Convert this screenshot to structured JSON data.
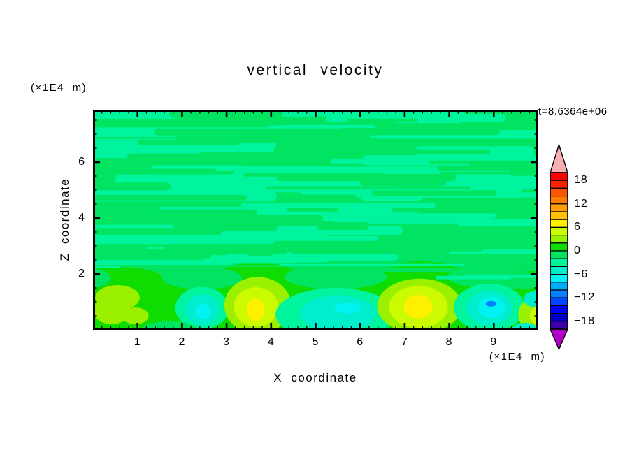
{
  "title": "vertical velocity",
  "timestamp": "t=8.6364e+06",
  "x_axis": {
    "label": "X coordinate",
    "unit": "(×1E4 m)",
    "range": [
      0,
      10
    ],
    "major_ticks": [
      1,
      2,
      3,
      4,
      5,
      6,
      7,
      8,
      9
    ],
    "tick_labels": [
      "1",
      "2",
      "3",
      "4",
      "5",
      "6",
      "7",
      "8",
      "9"
    ],
    "minor_tick_step": 0.2
  },
  "z_axis": {
    "label": "Z coordinate",
    "unit": "(×1E4 m)",
    "range": [
      0,
      7.875
    ],
    "major_ticks": [
      2,
      4,
      6
    ],
    "tick_labels": [
      "2",
      "4",
      "6"
    ],
    "minor_tick_step": 0.5
  },
  "colorbar": {
    "max": 20,
    "min": -20,
    "interval": 2,
    "ticks": [
      {
        "label": "18",
        "value": 18
      },
      {
        "label": "12",
        "value": 12
      },
      {
        "label": "6",
        "value": 6
      },
      {
        "label": "0",
        "value": 0
      },
      {
        "label": "−6",
        "value": -6
      },
      {
        "label": "−12",
        "value": -12
      },
      {
        "label": "−18",
        "value": -18
      }
    ],
    "colors_top_to_bottom": [
      "#FF0000",
      "#FF2200",
      "#FF5500",
      "#FF7D00",
      "#FF9E00",
      "#FFC100",
      "#FFF000",
      "#CCFA00",
      "#9BF000",
      "#0FDC00",
      "#00E462",
      "#00F49D",
      "#00EECB",
      "#00F2F2",
      "#00AEF6",
      "#0080FF",
      "#0045FF",
      "#0000FF",
      "#0000C8",
      "#3C00A8"
    ],
    "over_arrow_color": "#F8AFB2",
    "under_arrow_color": "#B400C8"
  },
  "chart_data": {
    "type": "filled_contour",
    "field_name": "vertical velocity",
    "time_label": "t=8.6364e+06",
    "x_range_x1E4_m": [
      0,
      10
    ],
    "z_range_x1E4_m": [
      0,
      7.875
    ],
    "contour_interval": 2,
    "value_range": [
      -20,
      20
    ],
    "wave_region": {
      "z_above": 1.75,
      "background_color": "#00E462",
      "streak_color": "#00F49D",
      "description": "stratified region filled with thin horizontal gravity-wave streaks alternating between the 0..-2 and -2..-4 bands",
      "seed": 1337,
      "light_streaks": 64,
      "dark_streaks": 42,
      "filaments": 9
    },
    "convective_layer": {
      "z_below": 1.75,
      "background_color": "#0FDC00",
      "background_band": "0..+2",
      "bumps": [
        {
          "x": 0.55,
          "z": 1.8,
          "rx": 1.05,
          "rz": 0.45
        },
        {
          "x": 3.7,
          "z": 1.85,
          "rx": 0.95,
          "rz": 0.55
        },
        {
          "x": 4.74,
          "z": 1.7,
          "rx": 0.45,
          "rz": 0.3
        },
        {
          "x": 5.26,
          "z": 1.62,
          "rx": 0.45,
          "rz": 0.38
        },
        {
          "x": 7.33,
          "z": 1.85,
          "rx": 1.05,
          "rz": 0.6
        },
        {
          "x": 9.9,
          "z": 1.7,
          "rx": 0.7,
          "rz": 0.4
        }
      ],
      "bites": [
        {
          "x": -0.05,
          "z": 1.85,
          "rx": 0.45,
          "rz": 0.35
        },
        {
          "x": 2.45,
          "z": 1.85,
          "rx": 0.9,
          "rz": 0.4
        },
        {
          "x": 5.45,
          "z": 1.9,
          "rx": 1.15,
          "rz": 0.45
        },
        {
          "x": 8.9,
          "z": 1.9,
          "rx": 0.95,
          "rz": 0.4
        },
        {
          "x": 9.6,
          "z": 1.75,
          "rx": 0.5,
          "rz": 0.3
        },
        {
          "x": 1.72,
          "z": 0.04,
          "rx": 0.6,
          "rz": 0.22
        }
      ]
    },
    "plumes": [
      {
        "name": "updraft near x=0.5",
        "kind": "updraft",
        "x": 0.5,
        "z": 0.7,
        "peak_band": "+2..+4",
        "shapes": [
          {
            "c": "#9BF000",
            "x": 0.55,
            "z": 1.15,
            "rx": 0.5,
            "rz": 0.45
          },
          {
            "c": "#9BF000",
            "x": 0.42,
            "z": 0.7,
            "rx": 0.42,
            "rz": 0.5
          },
          {
            "c": "#9BF000",
            "x": 0.95,
            "z": 0.5,
            "rx": 0.3,
            "rz": 0.3
          }
        ]
      },
      {
        "name": "downdraft near x=2.4",
        "kind": "downdraft",
        "x": 2.45,
        "z": 0.7,
        "peak_band": "-6..-8",
        "shapes": [
          {
            "c": "#00F49D",
            "x": 2.45,
            "z": 0.78,
            "rx": 0.6,
            "rz": 0.75
          },
          {
            "c": "#00EECB",
            "x": 2.45,
            "z": 0.72,
            "rx": 0.38,
            "rz": 0.55
          },
          {
            "c": "#00F2F2",
            "x": 2.48,
            "z": 0.65,
            "rx": 0.17,
            "rz": 0.28
          }
        ]
      },
      {
        "name": "updraft near x=3.7",
        "kind": "updraft",
        "x": 3.7,
        "z": 0.85,
        "peak_band": "+6..+8",
        "shapes": [
          {
            "c": "#9BF000",
            "x": 3.7,
            "z": 0.87,
            "rx": 0.75,
            "rz": 1.02
          },
          {
            "c": "#CCFA00",
            "x": 3.66,
            "z": 0.82,
            "rx": 0.5,
            "rz": 0.7
          },
          {
            "c": "#FFF000",
            "x": 3.65,
            "z": 0.72,
            "rx": 0.2,
            "rz": 0.4
          }
        ]
      },
      {
        "name": "small updraft near x=4.7",
        "kind": "updraft",
        "x": 4.74,
        "z": 0.1,
        "peak_band": "+6..+8",
        "shapes": [
          {
            "c": "#9BF000",
            "x": 4.74,
            "z": 0.12,
            "rx": 0.16,
            "rz": 0.2
          },
          {
            "c": "#FFF000",
            "x": 4.73,
            "z": 0.1,
            "rx": 0.07,
            "rz": 0.09
          }
        ]
      },
      {
        "name": "downdraft near x=5.4",
        "kind": "downdraft",
        "x": 5.45,
        "z": 0.6,
        "peak_band": "-6..-8",
        "shapes": [
          {
            "c": "#00F49D",
            "x": 5.45,
            "z": 0.55,
            "rx": 1.35,
            "rz": 0.95
          },
          {
            "c": "#00EECB",
            "x": 5.5,
            "z": 0.58,
            "rx": 0.85,
            "rz": 0.65
          },
          {
            "c": "#00F2F2",
            "x": 5.72,
            "z": 0.78,
            "rx": 0.3,
            "rz": 0.2
          }
        ]
      },
      {
        "name": "strong updraft near x=7.3",
        "kind": "updraft",
        "x": 7.33,
        "z": 0.85,
        "peak_band": "+8..+10",
        "shapes": [
          {
            "c": "#9BF000",
            "x": 7.33,
            "z": 0.85,
            "rx": 0.95,
            "rz": 0.98
          },
          {
            "c": "#CCFA00",
            "x": 7.31,
            "z": 0.82,
            "rx": 0.66,
            "rz": 0.75
          },
          {
            "c": "#FFF000",
            "x": 7.3,
            "z": 0.83,
            "rx": 0.32,
            "rz": 0.42
          }
        ]
      },
      {
        "name": "downdraft near x=8.9",
        "kind": "downdraft",
        "x": 8.9,
        "z": 0.85,
        "peak_band": "-10..-12",
        "shapes": [
          {
            "c": "#00F49D",
            "x": 8.9,
            "z": 0.8,
            "rx": 0.8,
            "rz": 0.85
          },
          {
            "c": "#00EECB",
            "x": 8.9,
            "z": 0.78,
            "rx": 0.52,
            "rz": 0.62
          },
          {
            "c": "#00F2F2",
            "x": 8.95,
            "z": 0.8,
            "rx": 0.3,
            "rz": 0.38
          },
          {
            "c": "#0080FF",
            "x": 8.94,
            "z": 0.93,
            "rx": 0.12,
            "rz": 0.1
          }
        ]
      },
      {
        "name": "updraft at right edge",
        "kind": "updraft",
        "x": 9.9,
        "z": 0.55,
        "peak_band": "+4..+6",
        "shapes": [
          {
            "c": "#9BF000",
            "x": 9.93,
            "z": 0.55,
            "rx": 0.38,
            "rz": 0.62
          },
          {
            "c": "#CCFA00",
            "x": 9.97,
            "z": 0.5,
            "rx": 0.16,
            "rz": 0.3
          }
        ]
      },
      {
        "name": "teal patch at right edge",
        "kind": "downdraft",
        "x": 9.92,
        "z": 1.1,
        "peak_band": "-4..-6",
        "shapes": [
          {
            "c": "#00EECB",
            "x": 9.92,
            "z": 1.1,
            "rx": 0.25,
            "rz": 0.28
          }
        ]
      },
      {
        "name": "teal patch bottom-right corner",
        "kind": "downdraft",
        "x": 9.7,
        "z": 0.05,
        "peak_band": "-4..-6",
        "shapes": [
          {
            "c": "#00EECB",
            "x": 9.7,
            "z": 0.05,
            "rx": 0.28,
            "rz": 0.2
          }
        ]
      },
      {
        "name": "emerald ground patch near x=1.7",
        "kind": "downdraft",
        "x": 1.72,
        "z": 0.05,
        "peak_band": "0..-2",
        "shapes": [
          {
            "c": "#00E462",
            "x": 1.72,
            "z": 0.05,
            "rx": 0.6,
            "rz": 0.25
          }
        ]
      }
    ]
  }
}
